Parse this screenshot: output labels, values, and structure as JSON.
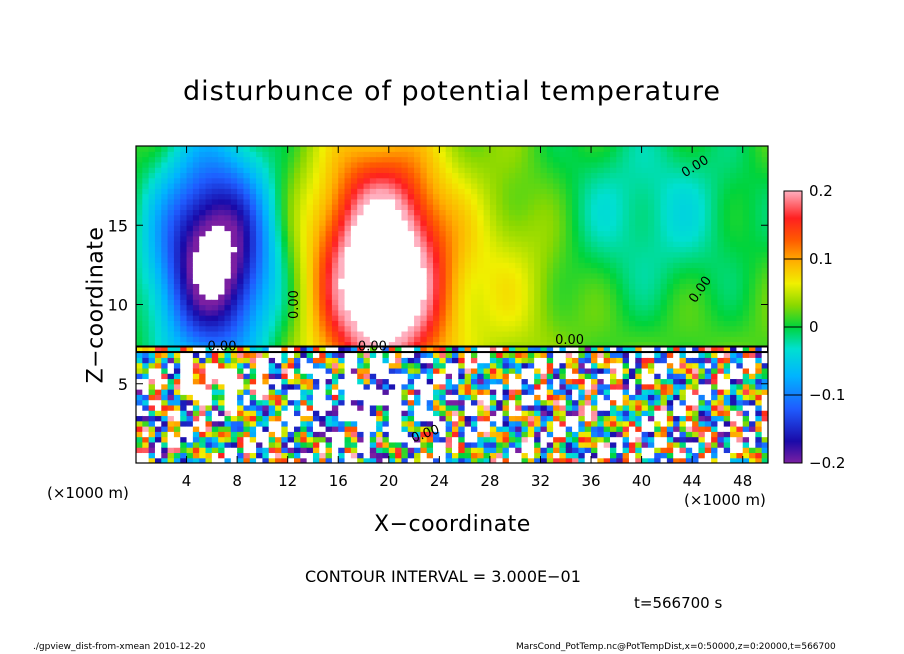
{
  "chart_data": {
    "type": "heatmap",
    "title": "disturbunce of potential temperature",
    "xlabel": "X−coordinate",
    "ylabel": "Z−coordinate",
    "x_unit_label": "(×1000 m)",
    "x_ticks": [
      4,
      8,
      12,
      16,
      20,
      24,
      28,
      32,
      36,
      40,
      44,
      48
    ],
    "y_ticks": [
      5,
      10,
      15
    ],
    "xlim": [
      0,
      50
    ],
    "ylim": [
      0,
      20
    ],
    "colorbar": {
      "range": [
        -0.2,
        0.2
      ],
      "tick_values": [
        0.2,
        0.1,
        0,
        -0.1,
        -0.2
      ],
      "tick_labels": [
        "0.2",
        "0.1",
        "0",
        "−0.1",
        "−0.2"
      ]
    },
    "contour_labels": [
      {
        "text": "0.00",
        "x": 44.4,
        "z": 18.5,
        "angle": -32
      },
      {
        "text": "0.00",
        "x": 44.9,
        "z": 10.8,
        "angle": -55
      },
      {
        "text": "0.00",
        "x": 12.8,
        "z": 10.0,
        "angle": -90
      },
      {
        "text": "0.00",
        "x": 34.3,
        "z": 7.5,
        "angle": 0
      },
      {
        "text": "0.00",
        "x": 18.7,
        "z": 7.1,
        "angle": 0
      },
      {
        "text": "0.00",
        "x": 6.8,
        "z": 7.1,
        "angle": 0
      },
      {
        "text": "0.00",
        "x": 23.0,
        "z": 1.6,
        "angle": -20
      }
    ],
    "contour_interval": "CONTOUR INTERVAL = 3.000E−01",
    "time_annotation": "t=566700 s"
  },
  "footer": {
    "left": "./gpview_dist-from-xmean  2010-12-20",
    "right": "MarsCond_PotTemp.nc@PotTempDist,x=0:50000,z=0:20000,t=566700"
  }
}
